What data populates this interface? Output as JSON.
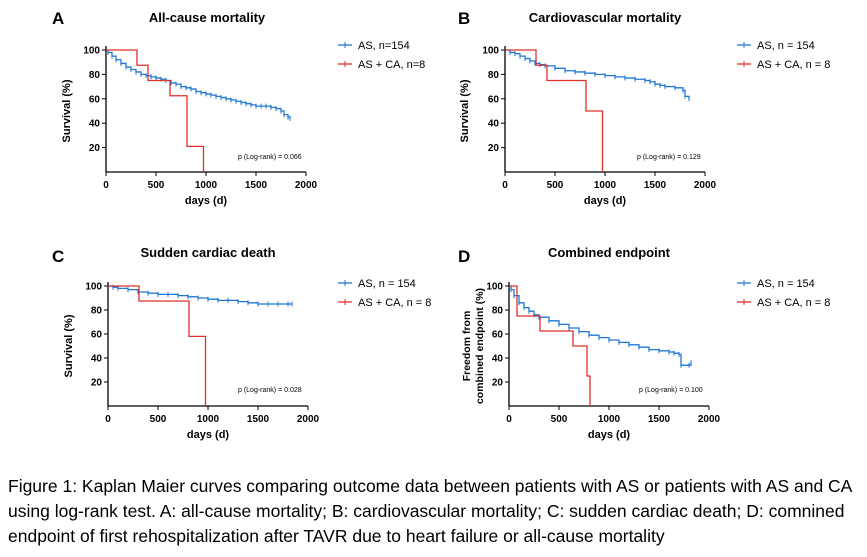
{
  "colors": {
    "as": "#1f77d4",
    "asca": "#e0302a",
    "axis": "#000000"
  },
  "caption": "Figure 1: Kaplan Maier curves comparing outcome data between patients with AS or patients with AS and CA using log-rank test. A: all-cause mortality; B: cardiovascular mortality; C: sudden cardiac death; D: comnined endpoint of first rehospitalization after TAVR due to heart failure or all-cause mortality",
  "chart_data": [
    {
      "panel": "A",
      "type": "line",
      "title": "All-cause mortality",
      "xlabel": "days (d)",
      "ylabel": "Survival (%)",
      "xlim": [
        0,
        2000
      ],
      "ylim": [
        0,
        100
      ],
      "xticks": [
        "0",
        "500",
        "1000",
        "1500",
        "2000"
      ],
      "yticks": [
        "20",
        "40",
        "60",
        "80",
        "100"
      ],
      "pvalue": "p (Log-rank) = 0.066",
      "legend_position": "top-right",
      "series": [
        {
          "name": "AS, n=154",
          "color": "#1f77d4",
          "x": [
            0,
            20,
            60,
            100,
            150,
            200,
            250,
            300,
            350,
            400,
            450,
            500,
            550,
            600,
            650,
            700,
            750,
            800,
            850,
            900,
            950,
            1000,
            1050,
            1100,
            1150,
            1200,
            1250,
            1300,
            1350,
            1400,
            1450,
            1500,
            1550,
            1600,
            1650,
            1700,
            1750,
            1780,
            1820,
            1840
          ],
          "y": [
            100,
            98,
            95,
            92,
            89,
            86,
            84,
            82,
            80,
            79,
            78,
            77,
            76,
            75,
            73,
            72,
            70,
            69,
            68,
            66,
            65,
            64,
            63,
            62,
            61,
            60,
            59,
            58,
            57,
            56,
            55,
            54,
            54,
            54,
            53,
            52,
            50,
            47,
            45,
            44
          ]
        },
        {
          "name": "AS + CA, n=8",
          "color": "#e0302a",
          "x": [
            0,
            310,
            310,
            420,
            420,
            640,
            640,
            810,
            810,
            975,
            975
          ],
          "y": [
            100,
            100,
            87.5,
            87.5,
            75,
            75,
            62.5,
            62.5,
            21,
            21,
            0
          ]
        }
      ]
    },
    {
      "panel": "B",
      "type": "line",
      "title": "Cardiovascular mortality",
      "xlabel": "days (d)",
      "ylabel": "Survival (%)",
      "xlim": [
        0,
        2000
      ],
      "ylim": [
        0,
        100
      ],
      "xticks": [
        "0",
        "500",
        "1000",
        "1500",
        "2000"
      ],
      "yticks": [
        "20",
        "40",
        "60",
        "80",
        "100"
      ],
      "pvalue": "p (Log-rank) = 0.129",
      "legend_position": "top-right",
      "series": [
        {
          "name": "AS, n = 154",
          "color": "#1f77d4",
          "x": [
            0,
            50,
            100,
            150,
            200,
            250,
            300,
            350,
            400,
            500,
            600,
            700,
            800,
            900,
            1000,
            1100,
            1200,
            1300,
            1400,
            1450,
            1500,
            1550,
            1600,
            1700,
            1780,
            1800,
            1840
          ],
          "y": [
            100,
            98,
            97,
            95,
            93,
            91,
            89,
            88,
            87,
            85,
            83,
            82,
            81,
            80,
            79,
            78,
            77,
            76,
            75,
            74,
            72,
            71,
            70,
            69,
            67,
            62,
            60
          ]
        },
        {
          "name": "AS + CA, n = 8",
          "color": "#e0302a",
          "x": [
            0,
            310,
            310,
            420,
            420,
            810,
            810,
            975,
            975
          ],
          "y": [
            100,
            100,
            87.5,
            87.5,
            75,
            75,
            50,
            50,
            0
          ]
        }
      ]
    },
    {
      "panel": "C",
      "type": "line",
      "title": "Sudden cardiac death",
      "xlabel": "days (d)",
      "ylabel": "Survival (%)",
      "xlim": [
        0,
        2000
      ],
      "ylim": [
        0,
        100
      ],
      "xticks": [
        "0",
        "500",
        "1000",
        "1500",
        "2000"
      ],
      "yticks": [
        "20",
        "40",
        "60",
        "80",
        "100"
      ],
      "pvalue": "p (Log-rank) = 0.028",
      "legend_position": "top-right",
      "series": [
        {
          "name": "AS, n = 154",
          "color": "#1f77d4",
          "x": [
            0,
            50,
            100,
            200,
            300,
            400,
            500,
            600,
            700,
            800,
            900,
            1000,
            1100,
            1200,
            1300,
            1400,
            1500,
            1600,
            1700,
            1800,
            1840
          ],
          "y": [
            100,
            99,
            98,
            97,
            95,
            94,
            93,
            93,
            92,
            91,
            90,
            89,
            88,
            88,
            87,
            86,
            85,
            85,
            85,
            85,
            85
          ]
        },
        {
          "name": "AS + CA, n = 8",
          "color": "#e0302a",
          "x": [
            0,
            310,
            310,
            810,
            810,
            975,
            975
          ],
          "y": [
            100,
            100,
            87.5,
            87.5,
            58,
            58,
            0
          ]
        }
      ]
    },
    {
      "panel": "D",
      "type": "line",
      "title": "Combined endpoint",
      "xlabel": "days (d)",
      "ylabel": "Freedom from combined endpoint (%)",
      "xlim": [
        0,
        2000
      ],
      "ylim": [
        0,
        100
      ],
      "xticks": [
        "0",
        "500",
        "1000",
        "1500",
        "2000"
      ],
      "yticks": [
        "20",
        "40",
        "60",
        "80",
        "100"
      ],
      "pvalue": "p (Log-rank) = 0.100",
      "legend_position": "top-right",
      "series": [
        {
          "name": "AS, n = 154",
          "color": "#1f77d4",
          "x": [
            0,
            20,
            50,
            100,
            150,
            200,
            250,
            300,
            400,
            500,
            600,
            700,
            800,
            900,
            1000,
            1100,
            1200,
            1300,
            1400,
            1500,
            1600,
            1650,
            1700,
            1720,
            1800,
            1820
          ],
          "y": [
            100,
            97,
            92,
            86,
            82,
            79,
            76,
            74,
            71,
            68,
            65,
            62,
            59,
            57,
            55,
            53,
            51,
            49,
            47,
            46,
            45,
            44,
            43,
            34,
            34,
            36
          ]
        },
        {
          "name": "AS + CA, n = 8",
          "color": "#e0302a",
          "x": [
            0,
            80,
            80,
            310,
            310,
            640,
            640,
            780,
            780,
            810,
            810
          ],
          "y": [
            100,
            100,
            75,
            75,
            62.5,
            62.5,
            50,
            50,
            25,
            25,
            0
          ]
        }
      ]
    }
  ]
}
